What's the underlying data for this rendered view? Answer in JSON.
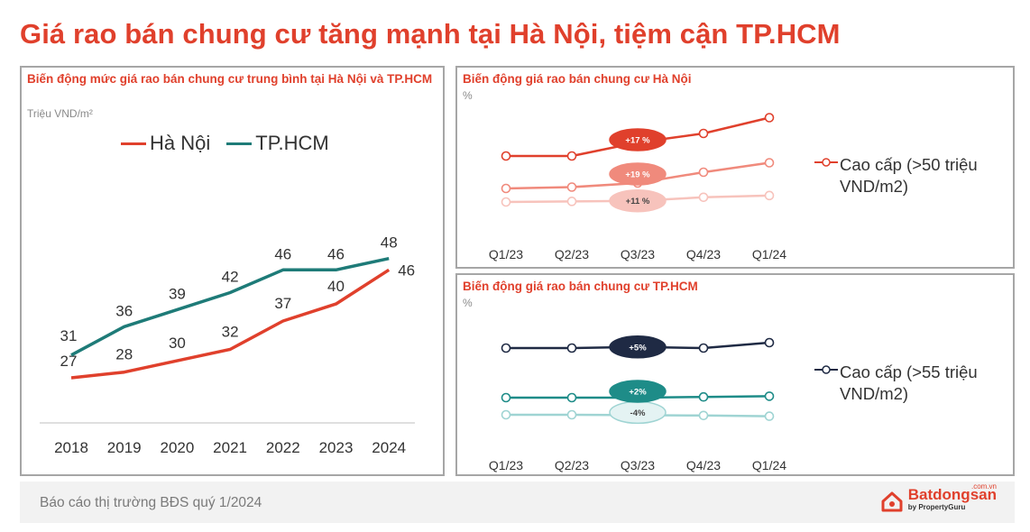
{
  "title": "Giá rao bán chung cư tăng mạnh tại Hà Nội, tiệm cận TP.HCM",
  "footer": {
    "report": "Báo cáo thị trường BĐS quý 1/2024",
    "brand_name": "Batdongsan",
    "brand_domain": ".com.vn",
    "brand_sub": "by PropertyGuru"
  },
  "colors": {
    "title": "#e0402c",
    "hanoi": "#e0402c",
    "hcm": "#1e7b78"
  },
  "chart_data": [
    {
      "type": "line",
      "title": "Biến động mức giá rao bán chung cư trung bình tại Hà Nội và TP.HCM",
      "unit": "Triệu VND/m²",
      "legend_position": "top",
      "x": [
        "2018",
        "2019",
        "2020",
        "2021",
        "2022",
        "2023",
        "2024"
      ],
      "ylim": [
        20,
        55
      ],
      "series": [
        {
          "name": "Hà Nội",
          "color": "#e0402c",
          "values": [
            27,
            28,
            30,
            32,
            37,
            40,
            46
          ]
        },
        {
          "name": "TP.HCM",
          "color": "#1e7b78",
          "values": [
            31,
            36,
            39,
            42,
            46,
            46,
            48
          ]
        }
      ]
    },
    {
      "type": "line",
      "title": "Biến động giá rao bán chung cư Hà Nội",
      "unit": "%",
      "legend_position": "right",
      "x": [
        "Q1/23",
        "Q2/23",
        "Q3/23",
        "Q4/23",
        "Q1/24"
      ],
      "series": [
        {
          "name": "Cao cấp (>50 triệu VND/m2)",
          "color": "#e0402c",
          "values": [
            100,
            100,
            106,
            110,
            117
          ],
          "change_label": "+17 %"
        },
        {
          "name": "",
          "color": "#f08a7c",
          "values": [
            100,
            101,
            104,
            112,
            119
          ],
          "change_label": "+19 %"
        },
        {
          "name": "",
          "color": "#f7c3bc",
          "values": [
            100,
            101,
            102,
            108,
            111
          ],
          "change_label": "+11 %"
        }
      ]
    },
    {
      "type": "line",
      "title": "Biến động giá rao bán chung cư TP.HCM",
      "unit": "%",
      "legend_position": "right",
      "x": [
        "Q1/23",
        "Q2/23",
        "Q3/23",
        "Q4/23",
        "Q1/24"
      ],
      "series": [
        {
          "name": "Cao cấp (>55 triệu VND/m2)",
          "color": "#1f2a44",
          "values": [
            100,
            100,
            101,
            100,
            105
          ],
          "change_label": "+5%"
        },
        {
          "name": "",
          "color": "#1e8c88",
          "values": [
            100,
            100,
            100,
            101,
            102
          ],
          "change_label": "+2%"
        },
        {
          "name": "",
          "color": "#9fd4d3",
          "values": [
            100,
            100,
            99,
            98,
            96
          ],
          "change_label": "-4%"
        }
      ]
    }
  ]
}
